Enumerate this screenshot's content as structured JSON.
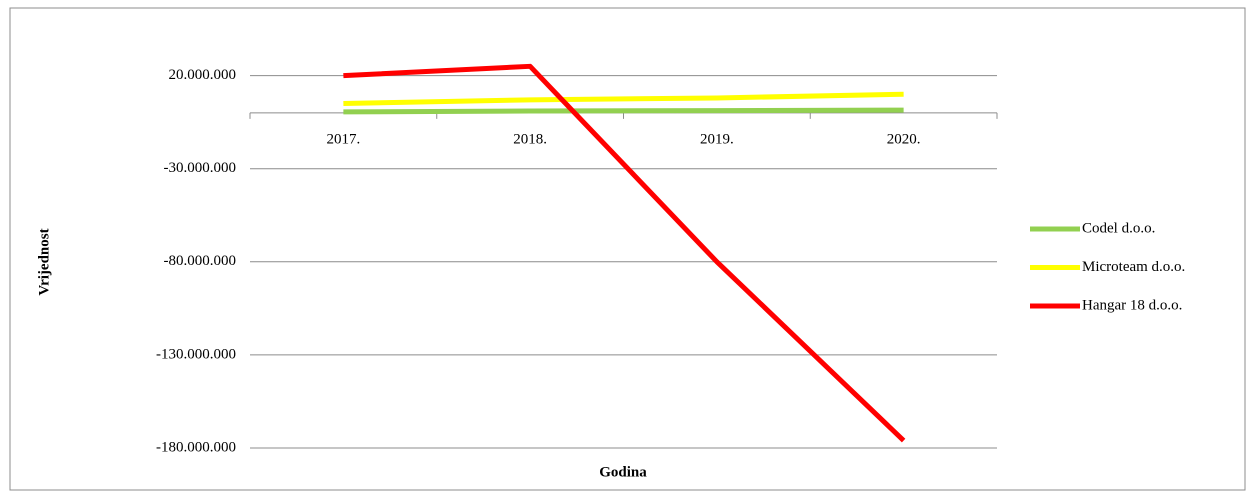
{
  "chart_data": {
    "type": "line",
    "x_label": "Godina",
    "y_label": "Vrijednost",
    "categories": [
      "2017.",
      "2018.",
      "2019.",
      "2020."
    ],
    "series": [
      {
        "name": "Codel d.o.o.",
        "color": "#92d050",
        "values": [
          500000,
          1000000,
          1200000,
          1500000
        ]
      },
      {
        "name": "Microteam d.o.o.",
        "color": "#ffff00",
        "values": [
          5000000,
          7000000,
          8000000,
          10000000
        ]
      },
      {
        "name": "Hangar 18 d.o.o.",
        "color": "#ff0000",
        "values": [
          20000000,
          25000000,
          -80000000,
          -176000000
        ]
      }
    ],
    "ylim": [
      -180000000,
      30000000
    ],
    "yticks": [
      {
        "value": 20000000,
        "label": "20.000.000"
      },
      {
        "value": -30000000,
        "label": "-30.000.000"
      },
      {
        "value": -80000000,
        "label": "-80.000.000"
      },
      {
        "value": -130000000,
        "label": "-130.000.000"
      },
      {
        "value": -180000000,
        "label": "-180.000.000"
      }
    ],
    "grid": true,
    "legend": "right"
  }
}
